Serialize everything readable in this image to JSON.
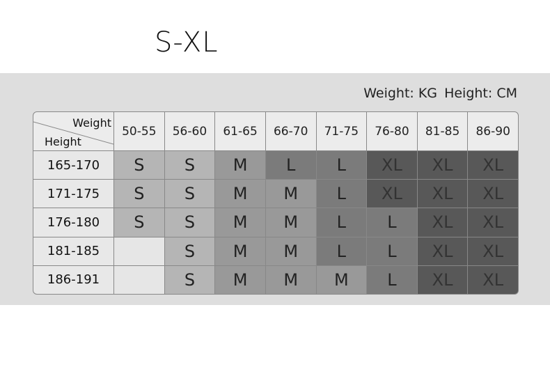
{
  "title": "S-XL",
  "units": {
    "weight": "Weight: KG",
    "height": "Height: CM"
  },
  "table": {
    "corner": {
      "weight": "Weight",
      "height": "Height"
    },
    "weights": [
      "50-55",
      "56-60",
      "61-65",
      "66-70",
      "71-75",
      "76-80",
      "81-85",
      "86-90"
    ],
    "rows": [
      {
        "height": "165-170",
        "sizes": [
          "S",
          "S",
          "M",
          "L",
          "L",
          "XL",
          "XL",
          "XL"
        ]
      },
      {
        "height": "171-175",
        "sizes": [
          "S",
          "S",
          "M",
          "M",
          "L",
          "XL",
          "XL",
          "XL"
        ]
      },
      {
        "height": "176-180",
        "sizes": [
          "S",
          "S",
          "M",
          "M",
          "L",
          "L",
          "XL",
          "XL"
        ]
      },
      {
        "height": "181-185",
        "sizes": [
          "",
          "S",
          "M",
          "M",
          "L",
          "L",
          "XL",
          "XL"
        ]
      },
      {
        "height": "186-191",
        "sizes": [
          "",
          "S",
          "M",
          "M",
          "M",
          "L",
          "XL",
          "XL"
        ]
      }
    ]
  },
  "colors": {
    "S": "#b5b5b5",
    "M": "#999999",
    "L": "#7b7b7b",
    "XL": "#585858",
    "empty": "#e6e6e6",
    "panel": "#dedede"
  }
}
